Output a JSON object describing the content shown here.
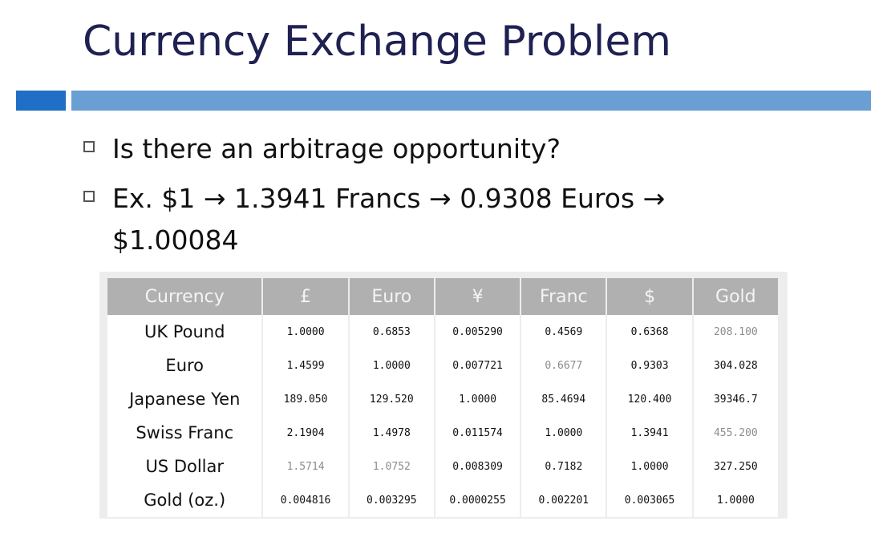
{
  "slide": {
    "title": "Currency Exchange Problem",
    "bullets": [
      "Is there an arbitrage opportunity?",
      "Ex. $1 → 1.3941 Francs → 0.9308 Euros → $1.00084"
    ]
  },
  "table": {
    "headers": [
      "Currency",
      "£",
      "Euro",
      "¥",
      "Franc",
      "$",
      "Gold"
    ],
    "rows": [
      {
        "label": "UK Pound",
        "values": [
          "1.0000",
          "0.6853",
          "0.005290",
          "0.4569",
          "0.6368",
          "208.100"
        ]
      },
      {
        "label": "Euro",
        "values": [
          "1.4599",
          "1.0000",
          "0.007721",
          "0.6677",
          "0.9303",
          "304.028"
        ]
      },
      {
        "label": "Japanese Yen",
        "values": [
          "189.050",
          "129.520",
          "1.0000",
          "85.4694",
          "120.400",
          "39346.7"
        ]
      },
      {
        "label": "Swiss Franc",
        "values": [
          "2.1904",
          "1.4978",
          "0.011574",
          "1.0000",
          "1.3941",
          "455.200"
        ]
      },
      {
        "label": "US Dollar",
        "values": [
          "1.5714",
          "1.0752",
          "0.008309",
          "0.7182",
          "1.0000",
          "327.250"
        ]
      },
      {
        "label": "Gold (oz.)",
        "values": [
          "0.004816",
          "0.003295",
          "0.0000255",
          "0.002201",
          "0.003065",
          "1.0000"
        ]
      }
    ]
  },
  "colors": {
    "title": "#1f2152",
    "accent_bar_dark": "#1f6fc6",
    "accent_bar_light": "#6a9fd4",
    "table_header_bg": "#b0b0b0"
  }
}
